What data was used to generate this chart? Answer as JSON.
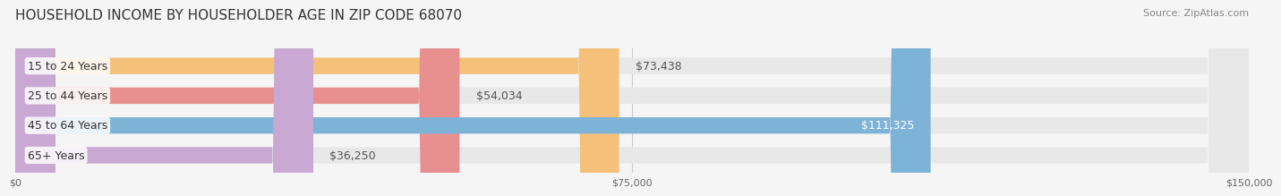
{
  "title": "HOUSEHOLD INCOME BY HOUSEHOLDER AGE IN ZIP CODE 68070",
  "source": "Source: ZipAtlas.com",
  "categories": [
    "15 to 24 Years",
    "25 to 44 Years",
    "45 to 64 Years",
    "65+ Years"
  ],
  "values": [
    73438,
    54034,
    111325,
    36250
  ],
  "bar_colors": [
    "#F5C07A",
    "#E89090",
    "#7EB3D8",
    "#C9A8D4"
  ],
  "track_color": "#E8E8E8",
  "value_label_inside": [
    false,
    false,
    true,
    false
  ],
  "xlim": [
    0,
    150000
  ],
  "xticks": [
    0,
    75000,
    150000
  ],
  "xtick_labels": [
    "$0",
    "$75,000",
    "$150,000"
  ],
  "bar_height": 0.55,
  "background_color": "#F5F5F5",
  "title_fontsize": 11,
  "source_fontsize": 8,
  "label_fontsize": 9,
  "value_fontsize": 9
}
